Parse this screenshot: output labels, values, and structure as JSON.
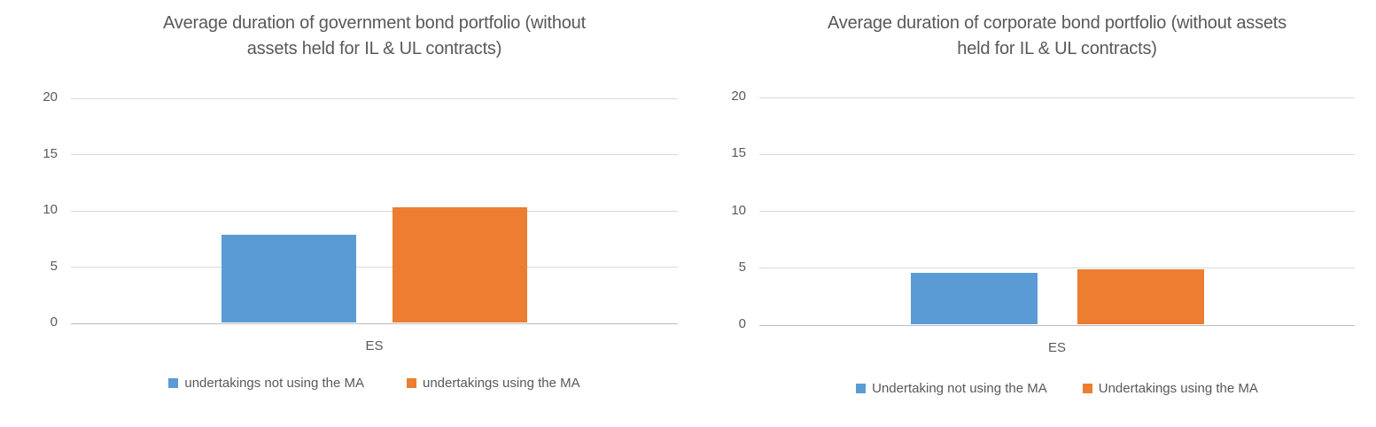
{
  "colors": {
    "series_blue": "#5B9BD5",
    "series_orange": "#ED7D31",
    "text_gray": "#595959",
    "gridline": "#D9D9D9",
    "axis_line": "#BDBDBD"
  },
  "chart_data": [
    {
      "type": "bar",
      "title": "Average duration of government bond portfolio (without\nassets held for IL & UL contracts)",
      "categories": [
        "ES"
      ],
      "series": [
        {
          "name": "undertakings not using the MA",
          "values": [
            7.8
          ],
          "color": "#5B9BD5"
        },
        {
          "name": "undertakings using the MA",
          "values": [
            10.2
          ],
          "color": "#ED7D31"
        }
      ],
      "xlabel": "",
      "ylabel": "",
      "ylim": [
        0,
        20
      ],
      "yticks": [
        20,
        15,
        10,
        5,
        0
      ],
      "grid": true,
      "legend_position": "bottom"
    },
    {
      "type": "bar",
      "title": "Average duration of corporate bond portfolio (without assets\nheld for IL & UL contracts)",
      "categories": [
        "ES"
      ],
      "series": [
        {
          "name": "Undertaking not using the MA",
          "values": [
            4.5
          ],
          "color": "#5B9BD5"
        },
        {
          "name": "Undertakings using the MA",
          "values": [
            4.8
          ],
          "color": "#ED7D31"
        }
      ],
      "xlabel": "",
      "ylabel": "",
      "ylim": [
        0,
        20
      ],
      "yticks": [
        20,
        15,
        10,
        5,
        0
      ],
      "grid": true,
      "legend_position": "bottom"
    }
  ]
}
